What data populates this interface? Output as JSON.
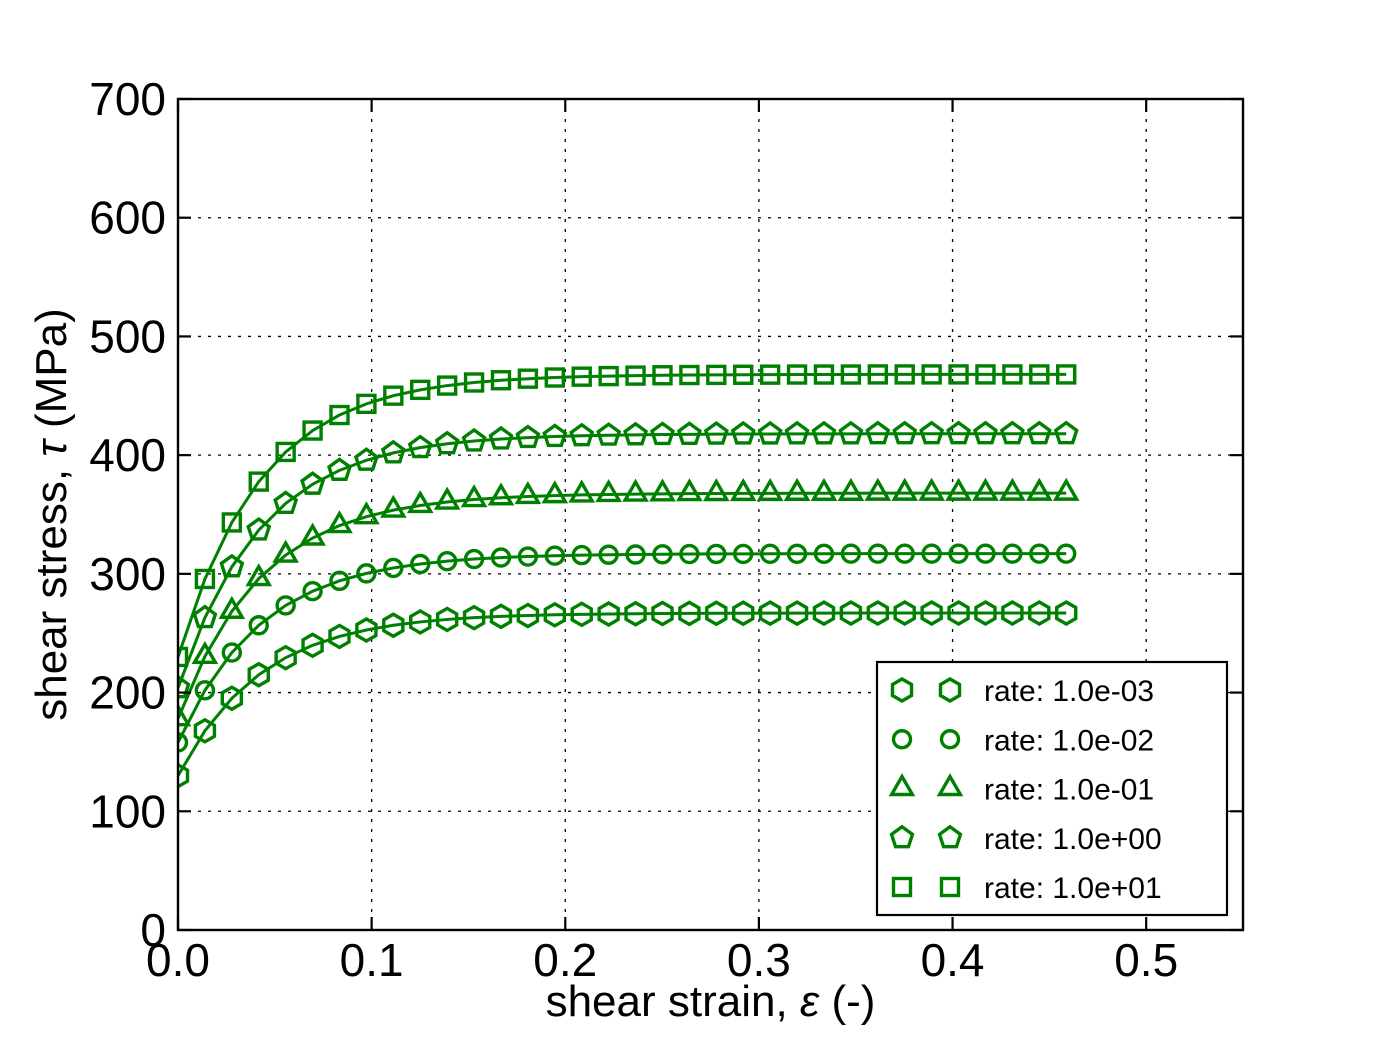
{
  "figure": {
    "background": "#ffffff",
    "axis_color": "#000000",
    "accent_color": "#008000"
  },
  "chart_data": {
    "type": "line",
    "title": "",
    "xlabel": "shear strain, ε (-)",
    "xlabel_parts": {
      "prefix": "shear strain, ",
      "symbol": "ε",
      "suffix": " (-)"
    },
    "ylabel": "shear stress, τ (MPa)",
    "ylabel_parts": {
      "prefix": "shear stress, ",
      "symbol": "τ",
      "suffix": " (MPa)"
    },
    "xlim": [
      0.0,
      0.55
    ],
    "ylim": [
      0,
      700
    ],
    "xticks": {
      "values": [
        0.0,
        0.1,
        0.2,
        0.3,
        0.4,
        0.5
      ],
      "labels": [
        "0.0",
        "0.1",
        "0.2",
        "0.3",
        "0.4",
        "0.5"
      ]
    },
    "yticks": {
      "values": [
        0,
        100,
        200,
        300,
        400,
        500,
        600,
        700
      ],
      "labels": [
        "0",
        "100",
        "200",
        "300",
        "400",
        "500",
        "600",
        "700"
      ]
    },
    "grid": true,
    "grid_style": "dotted",
    "line_color": "#008000",
    "marker_face": "none",
    "legend": {
      "position": "lower right",
      "markers_per_entry": 2
    },
    "x": [
      0.0,
      0.0139,
      0.0278,
      0.0417,
      0.0556,
      0.0695,
      0.0834,
      0.0973,
      0.1112,
      0.1251,
      0.139,
      0.1529,
      0.1668,
      0.1807,
      0.1946,
      0.2085,
      0.2224,
      0.2363,
      0.2502,
      0.2641,
      0.278,
      0.2919,
      0.3058,
      0.3197,
      0.3336,
      0.3475,
      0.3614,
      0.3753,
      0.3892,
      0.4031,
      0.417,
      0.4309,
      0.4448,
      0.4587
    ],
    "series": [
      {
        "name": "rate: 1.0e-03",
        "marker": "hexagon",
        "color": "#008000",
        "initial_stress": 130,
        "saturation_stress": 267,
        "values": [
          130.0,
          167.8,
          195.2,
          215.0,
          229.4,
          239.8,
          247.3,
          252.7,
          256.7,
          259.5,
          261.6,
          263.1,
          264.2,
          264.9,
          265.5,
          265.9,
          266.2,
          266.4,
          266.6,
          266.7,
          266.8,
          266.8,
          266.9,
          266.9,
          266.9,
          267.0,
          267.0,
          267.0,
          267.0,
          267.0,
          267.0,
          267.0,
          267.0,
          267.0
        ]
      },
      {
        "name": "rate: 1.0e-02",
        "marker": "circle",
        "color": "#008000",
        "initial_stress": 158,
        "saturation_stress": 317,
        "values": [
          158.0,
          201.9,
          233.7,
          256.7,
          273.4,
          285.4,
          294.1,
          300.4,
          305.0,
          308.3,
          310.7,
          312.5,
          313.7,
          314.6,
          315.3,
          315.8,
          316.1,
          316.3,
          316.5,
          316.7,
          316.8,
          316.8,
          316.9,
          316.9,
          316.9,
          317.0,
          317.0,
          317.0,
          317.0,
          317.0,
          317.0,
          317.0,
          317.0,
          317.0
        ]
      },
      {
        "name": "rate: 1.0e-01",
        "marker": "triangle",
        "color": "#008000",
        "initial_stress": 178,
        "saturation_stress": 368,
        "values": [
          178.0,
          230.5,
          268.5,
          296.0,
          315.8,
          330.2,
          340.7,
          348.2,
          353.7,
          357.6,
          360.5,
          362.6,
          364.1,
          365.2,
          365.9,
          366.5,
          366.9,
          367.2,
          367.4,
          367.6,
          367.7,
          367.8,
          367.8,
          367.9,
          367.9,
          367.9,
          368.0,
          368.0,
          368.0,
          368.0,
          368.0,
          368.0,
          368.0,
          368.0
        ]
      },
      {
        "name": "rate: 1.0e+00",
        "marker": "pentagon",
        "color": "#008000",
        "initial_stress": 204,
        "saturation_stress": 418,
        "values": [
          204.0,
          263.1,
          305.9,
          336.9,
          359.3,
          375.5,
          387.2,
          395.7,
          401.9,
          406.3,
          409.6,
          411.9,
          413.6,
          414.8,
          415.7,
          416.3,
          416.8,
          417.1,
          417.4,
          417.5,
          417.7,
          417.8,
          417.8,
          417.9,
          417.9,
          417.9,
          418.0,
          418.0,
          418.0,
          418.0,
          418.0,
          418.0,
          418.0,
          418.0
        ]
      },
      {
        "name": "rate: 1.0e+01",
        "marker": "square",
        "color": "#008000",
        "initial_stress": 230,
        "saturation_stress": 468,
        "values": [
          230.0,
          295.7,
          343.3,
          377.7,
          402.7,
          420.7,
          433.8,
          443.2,
          450.1,
          455.0,
          458.6,
          461.2,
          463.1,
          464.4,
          465.4,
          466.1,
          466.6,
          467.0,
          467.3,
          467.5,
          467.6,
          467.7,
          467.8,
          467.9,
          467.9,
          467.9,
          468.0,
          468.0,
          468.0,
          468.0,
          468.0,
          468.0,
          468.0,
          468.0
        ]
      }
    ]
  }
}
